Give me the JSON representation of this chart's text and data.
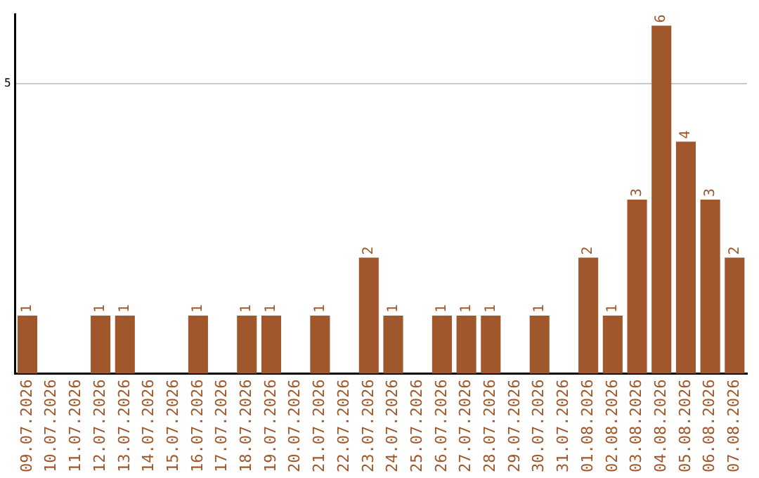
{
  "chart_data": {
    "type": "bar",
    "categories": [
      "09.07.2026",
      "10.07.2026",
      "11.07.2026",
      "12.07.2026",
      "13.07.2026",
      "14.07.2026",
      "15.07.2026",
      "16.07.2026",
      "17.07.2026",
      "18.07.2026",
      "19.07.2026",
      "20.07.2026",
      "21.07.2026",
      "22.07.2026",
      "23.07.2026",
      "24.07.2026",
      "25.07.2026",
      "26.07.2026",
      "27.07.2026",
      "28.07.2026",
      "29.07.2026",
      "30.07.2026",
      "31.07.2026",
      "01.08.2026",
      "02.08.2026",
      "03.08.2026",
      "04.08.2026",
      "05.08.2026",
      "06.08.2026",
      "07.08.2026"
    ],
    "values": [
      1,
      0,
      0,
      1,
      1,
      0,
      0,
      1,
      0,
      1,
      1,
      0,
      1,
      0,
      2,
      1,
      0,
      1,
      1,
      1,
      0,
      1,
      0,
      2,
      1,
      3,
      6,
      4,
      3,
      2
    ],
    "value_labels": [
      "1",
      null,
      null,
      "1",
      "1",
      null,
      null,
      "1",
      null,
      "1",
      "1",
      null,
      "1",
      null,
      "2",
      "1",
      null,
      "1",
      "1",
      "1",
      null,
      "1",
      null,
      "2",
      "1",
      "3",
      "6",
      "4",
      "3",
      "2"
    ],
    "color": "#a0572b",
    "ylim": [
      0,
      6.2
    ],
    "yticks": [
      5
    ],
    "grid": "y",
    "legend": false
  }
}
